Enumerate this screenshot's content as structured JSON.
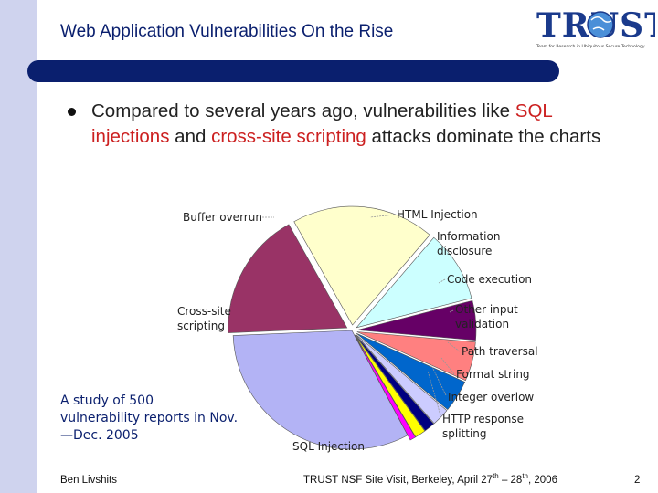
{
  "slide": {
    "title": "Web Application Vulnerabilities On the Rise",
    "bullet": {
      "part1": "Compared to several years ago, vulnerabilities like ",
      "highlight1": "SQL injections",
      "part2": " and ",
      "highlight2": "cross-site scripting",
      "part3": " attacks dominate the charts"
    },
    "note_lines": [
      "A study of 500",
      "vulnerability reports in Nov.",
      "—Dec. 2005"
    ]
  },
  "logo": {
    "text": "TRUST",
    "subtitle": "Team for Research in Ubiquitous Secure Technology"
  },
  "footer": {
    "author": "Ben Livshits",
    "event_prefix": "TRUST NSF Site Visit, Berkeley, April 27",
    "sup1": "th",
    "event_middle": " – 28",
    "sup2": "th",
    "event_suffix": ", 2006",
    "page": "2"
  },
  "colors": {
    "title": "#0a1f6e",
    "accent_red": "#cc2020",
    "bar": "#0a1f6e",
    "left_strip": "#cfd3ee"
  },
  "chart_data": {
    "type": "pie",
    "title": "",
    "categories": [
      "SQL Injection",
      "Cross-site scripting",
      "Buffer overrun",
      "HTML Injection",
      "Information disclosure",
      "Code execution",
      "Other input validation",
      "Path traversal",
      "Format string",
      "Integer overlow",
      "HTTP response splitting"
    ],
    "label_lines": [
      [
        "SQL Injection"
      ],
      [
        "Cross-site",
        "scripting"
      ],
      [
        "Buffer overrun"
      ],
      [
        "HTML Injection"
      ],
      [
        "Information",
        "disclosure"
      ],
      [
        "Code execution"
      ],
      [
        "Other input",
        "validation"
      ],
      [
        "Path traversal"
      ],
      [
        "Format string"
      ],
      [
        "Integer overlow"
      ],
      [
        "HTTP response",
        "splitting"
      ]
    ],
    "values": [
      33,
      18,
      20,
      10,
      5.5,
      5.5,
      4.5,
      2.5,
      1.5,
      1.5,
      0.8
    ],
    "colors": [
      "#b3b3f5",
      "#993366",
      "#ffffcc",
      "#ccffff",
      "#660066",
      "#ff8080",
      "#0066cc",
      "#ccccff",
      "#000080",
      "#ffff00",
      "#ff00ff"
    ],
    "legend": "none"
  }
}
